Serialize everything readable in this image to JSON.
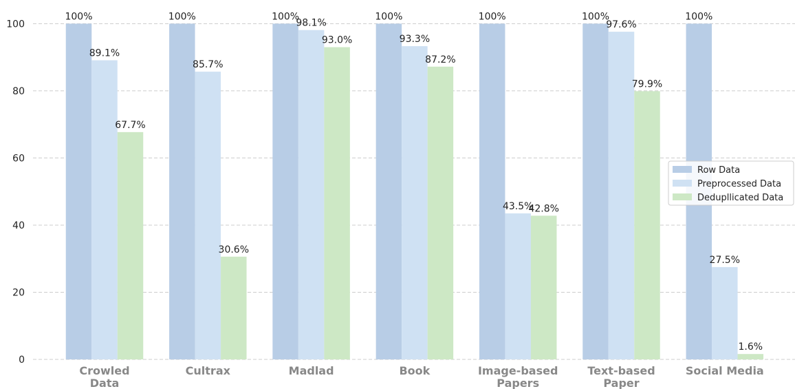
{
  "chart_data": {
    "type": "bar",
    "categories": [
      "Crowled\nData",
      "Cultrax",
      "Madlad",
      "Book",
      "Image-based\nPapers",
      "Text-based\nPaper",
      "Social Media"
    ],
    "series": [
      {
        "name": "Row Data",
        "color": "#b8cde6",
        "values": [
          100,
          100,
          100,
          100,
          100,
          100,
          100
        ],
        "value_labels": [
          "100%",
          "100%",
          "100%",
          "100%",
          "100%",
          "100%",
          "100%"
        ]
      },
      {
        "name": "Preprocessed Data",
        "color": "#cfe1f3",
        "values": [
          89.1,
          85.7,
          98.1,
          93.3,
          43.5,
          97.6,
          27.5
        ],
        "value_labels": [
          "89.1%",
          "85.7%",
          "98.1%",
          "93.3%",
          "43.5%",
          "97.6%",
          "27.5%"
        ]
      },
      {
        "name": "Dedupllicated Data",
        "color": "#cde8c5",
        "values": [
          67.7,
          30.6,
          93.0,
          87.2,
          42.8,
          79.9,
          1.6
        ],
        "value_labels": [
          "67.7%",
          "30.6%",
          "93.0%",
          "87.2%",
          "42.8%",
          "79.9%",
          "1.6%"
        ]
      }
    ],
    "ylim": [
      0,
      105
    ],
    "yticks": [
      0,
      20,
      40,
      60,
      80,
      100
    ],
    "grid": true,
    "legend": "center right"
  }
}
